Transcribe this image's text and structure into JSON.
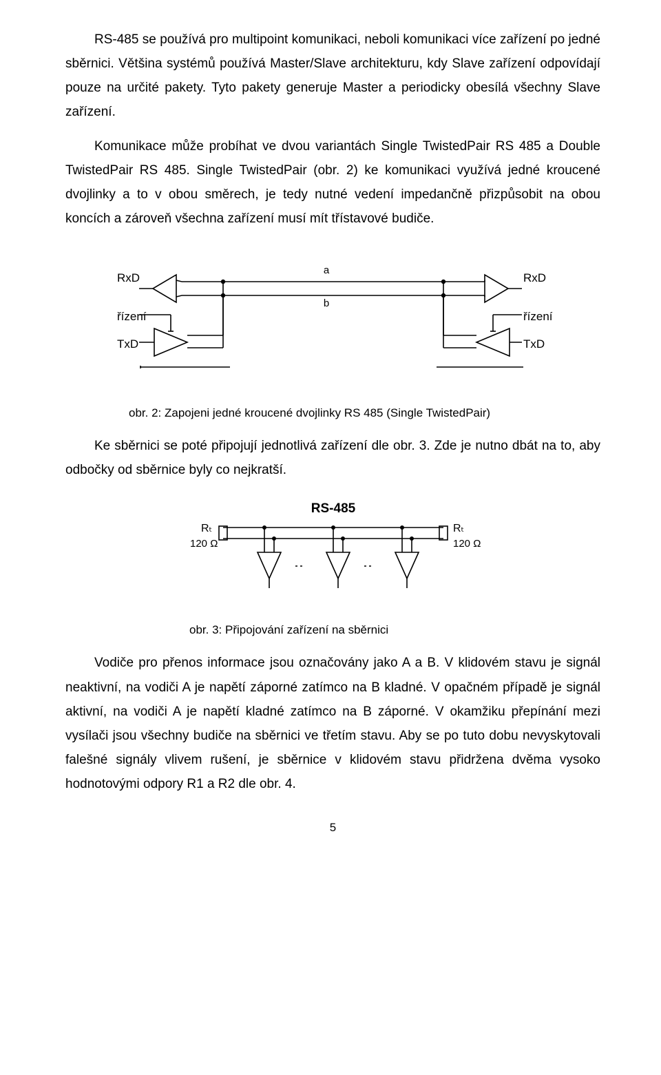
{
  "para1": "RS-485 se používá pro multipoint komunikaci, neboli komunikaci více zařízení po jedné sběrnici. Většina systémů používá Master/Slave architekturu, kdy Slave zařízení odpovídají pouze na určité pakety. Tyto pakety generuje Master a periodicky obesílá všechny Slave zařízení.",
  "para2": "Komunikace může probíhat ve dvou variantách Single TwistedPair RS 485 a Double TwistedPair RS 485. Single TwistedPair (obr. 2) ke komunikaci využívá jedné kroucené dvojlinky a to v obou směrech, je tedy nutné vedení impedančně přizpůsobit na obou koncích a zároveň všechna zařízení musí mít třístavové budiče.",
  "caption2_prefix": "obr. 2: ",
  "caption2_text": "Zapojeni jedné kroucené dvojlinky RS 485 (Single TwistedPair)",
  "para3": "Ke sběrnici se poté připojují jednotlivá zařízení dle obr. 3. Zde je nutno dbát na to, aby odbočky od sběrnice byly co nejkratší.",
  "caption3_prefix": "obr. 3: ",
  "caption3_text": "Připojování zařízení na sběrnici",
  "para4": "Vodiče pro přenos informace jsou označovány jako A a B. V klidovém stavu je signál neaktivní, na vodiči A je napětí záporné zatímco na B kladné. V opačném případě je signál aktivní, na vodiči A je napětí kladné zatímco na B záporné. V okamžiku přepínání mezi vysílači jsou všechny budiče na sběrnici ve třetím stavu. Aby se po tuto dobu nevyskytovali falešné signály vlivem rušení, je sběrnice v klidovém stavu přidržena dvěma vysoko hodnotovými odpory R1 a R2 dle obr. 4.",
  "page_number": "5",
  "fig2": {
    "labels": {
      "rxd": "RxD",
      "rizeni": "řízení",
      "txd": "TxD",
      "a": "a",
      "b": "b"
    },
    "colors": {
      "line": "#000000",
      "bg": "#ffffff"
    },
    "stroke_width": 1.6
  },
  "fig3": {
    "title": "RS-485",
    "labels": {
      "rt": "Rₜ",
      "ohm": "120 Ω"
    },
    "colors": {
      "line": "#000000",
      "title": "#000000",
      "bg": "#ffffff"
    },
    "stroke_width": 1.6
  }
}
